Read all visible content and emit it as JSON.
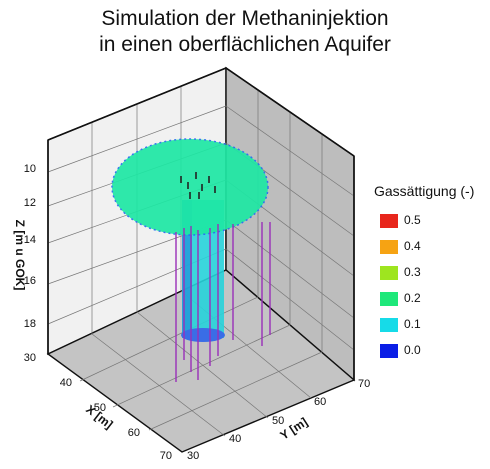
{
  "title_line1": "Simulation der Methaninjektion",
  "title_line2": "in einen oberflächlichen Aquifer",
  "chart_data": {
    "type": "3d-surface",
    "title": "Simulation der Methaninjektion in einen oberflächlichen Aquifer",
    "zlabel": "Z [m u GOK]",
    "xlabel": "X [m]",
    "ylabel": "Y [m]",
    "z_ticks": [
      "10",
      "12",
      "14",
      "16",
      "18",
      "30"
    ],
    "x_ticks": [
      "40",
      "50",
      "60",
      "70"
    ],
    "y_ticks": [
      "30",
      "40",
      "50",
      "60",
      "70"
    ],
    "xlim": [
      30,
      70
    ],
    "ylim": [
      30,
      70
    ],
    "grid": true,
    "legend": {
      "title": "Gassättigung (-)",
      "placement": "right",
      "entries": [
        {
          "label": "0.5",
          "color": "#e8261c"
        },
        {
          "label": "0.4",
          "color": "#f6a313"
        },
        {
          "label": "0.3",
          "color": "#9ee51f"
        },
        {
          "label": "0.2",
          "color": "#1ee87a"
        },
        {
          "label": "0.1",
          "color": "#16dbe8"
        },
        {
          "label": "0.0",
          "color": "#0a1ee6"
        }
      ]
    },
    "plume": {
      "surface_saturation": 0.2,
      "column_saturation": 0.1
    }
  }
}
